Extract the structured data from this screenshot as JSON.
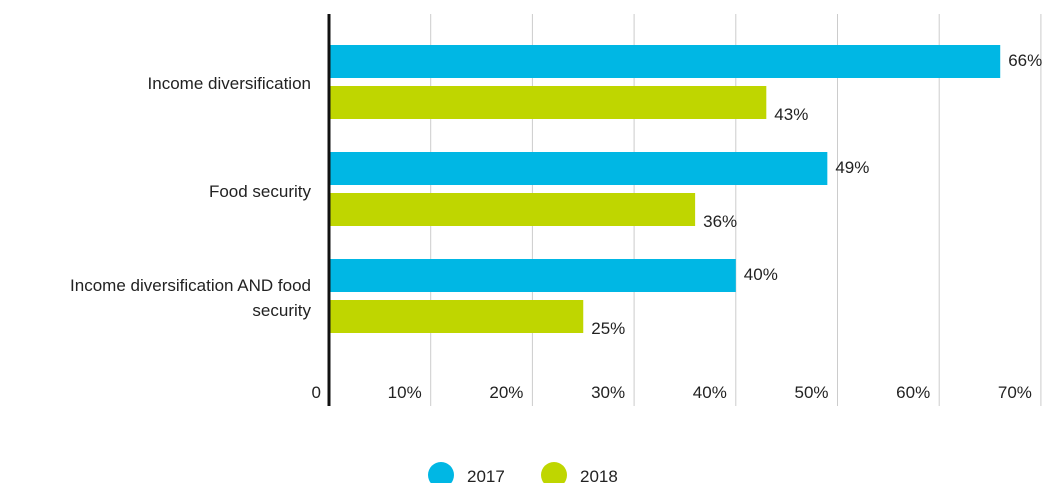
{
  "chart_data": {
    "type": "bar",
    "orientation": "horizontal",
    "categories": [
      [
        "Income diversification"
      ],
      [
        "Food security"
      ],
      [
        "Income diversification AND food",
        "security"
      ]
    ],
    "series": [
      {
        "name": "2017",
        "values": [
          66,
          49,
          40
        ],
        "labels": [
          "66%",
          "49%",
          "40%"
        ],
        "color": "#00b7e4"
      },
      {
        "name": "2018",
        "values": [
          43,
          36,
          25
        ],
        "labels": [
          "43%",
          "36%",
          "25%"
        ],
        "color": "#bfd600"
      }
    ],
    "x_ticks": [
      "0",
      "10%",
      "20%",
      "30%",
      "40%",
      "50%",
      "60%",
      "70%"
    ],
    "xlim": [
      0,
      70
    ],
    "grid": true,
    "legend_position": "bottom-center"
  }
}
